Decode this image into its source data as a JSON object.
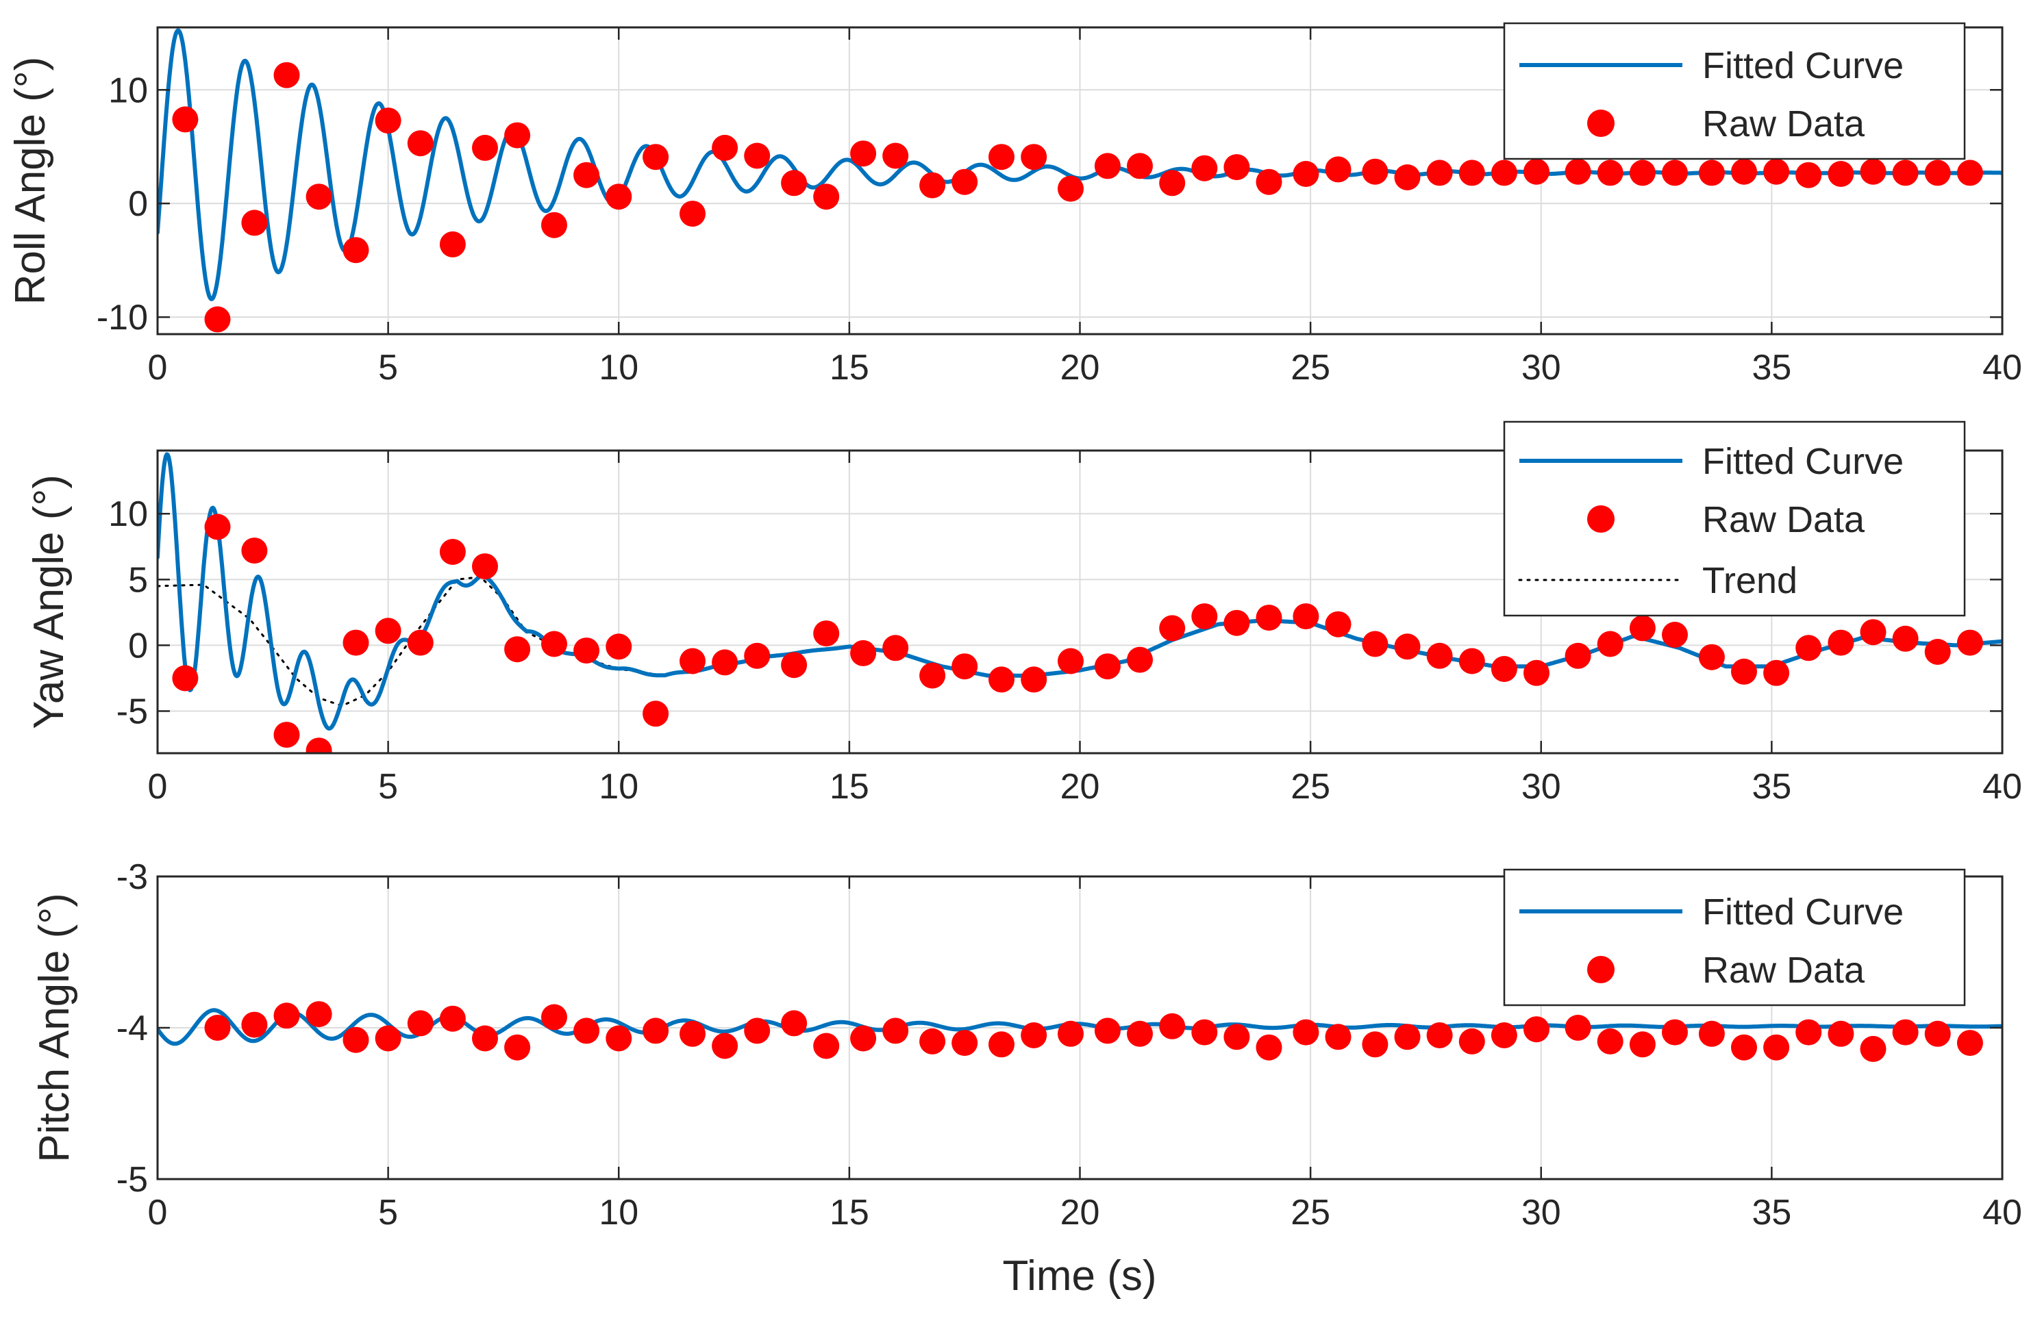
{
  "chart_data": [
    {
      "type": "line",
      "id": "roll",
      "ylabel": "Roll Angle (°)",
      "xlabel": "",
      "xlim": [
        0,
        40
      ],
      "ylim": [
        -11.5,
        15.5
      ],
      "xticks": [
        0,
        5,
        10,
        15,
        20,
        25,
        30,
        35,
        40
      ],
      "xtick_labels": [
        "0",
        "5",
        "10",
        "15",
        "20",
        "25",
        "30",
        "35",
        "40"
      ],
      "yticks": [
        -10,
        0,
        10
      ],
      "ytick_labels": [
        "-10",
        "0",
        "10"
      ],
      "grid": true,
      "legend": {
        "position": "top-right",
        "entries": [
          "Fitted Curve",
          "Raw Data"
        ]
      },
      "series": [
        {
          "name": "Fitted Curve",
          "kind": "line",
          "color": "#0072BD",
          "model": {
            "offset": 2.7,
            "amplitude": 13.5,
            "decay": 0.165,
            "period": 1.45,
            "phase": -0.4
          }
        },
        {
          "name": "Raw Data",
          "kind": "scatter",
          "color": "#FF0000",
          "x": [
            0.6,
            1.3,
            2.1,
            2.8,
            3.5,
            4.3,
            5,
            5.7,
            6.4,
            7.1,
            7.8,
            8.6,
            9.3,
            10,
            10.8,
            11.6,
            12.3,
            13,
            13.8,
            14.5,
            15.3,
            16,
            16.8,
            17.5,
            18.3,
            19,
            19.8,
            20.6,
            21.3,
            22,
            22.7,
            23.4,
            24.1,
            24.9,
            25.6,
            26.4,
            27.1,
            27.8,
            28.5,
            29.2,
            29.9,
            30.8,
            31.5,
            32.2,
            32.9,
            33.7,
            34.4,
            35.1,
            35.8,
            36.5,
            37.2,
            37.9,
            38.6,
            39.3
          ],
          "y": [
            7.4,
            -10.2,
            -1.7,
            11.3,
            0.6,
            -4.1,
            7.3,
            5.3,
            -3.6,
            4.9,
            6,
            -1.9,
            2.5,
            0.6,
            4.1,
            -0.9,
            4.9,
            4.2,
            1.8,
            0.6,
            4.4,
            4.2,
            1.6,
            1.9,
            4.1,
            4.1,
            1.3,
            3.3,
            3.3,
            1.8,
            3.1,
            3.2,
            1.9,
            2.6,
            3,
            2.8,
            2.3,
            2.7,
            2.7,
            2.7,
            2.8,
            2.8,
            2.7,
            2.7,
            2.7,
            2.7,
            2.8,
            2.8,
            2.5,
            2.6,
            2.8,
            2.7,
            2.7,
            2.7
          ]
        }
      ]
    },
    {
      "type": "line",
      "id": "yaw",
      "ylabel": "Yaw Angle (°)",
      "xlabel": "",
      "xlim": [
        0,
        40
      ],
      "ylim": [
        -8.2,
        14.8
      ],
      "xticks": [
        0,
        5,
        10,
        15,
        20,
        25,
        30,
        35,
        40
      ],
      "xtick_labels": [
        "0",
        "5",
        "10",
        "15",
        "20",
        "25",
        "30",
        "35",
        "40"
      ],
      "yticks": [
        -5,
        0,
        5,
        10
      ],
      "ytick_labels": [
        "-5",
        "0",
        "5",
        "10"
      ],
      "grid": true,
      "legend": {
        "position": "top-right",
        "entries": [
          "Fitted Curve",
          "Raw Data",
          "Trend"
        ]
      },
      "series": [
        {
          "name": "Trend",
          "kind": "line",
          "style": "dotted",
          "color": "#000000",
          "x": [
            0,
            1,
            2,
            2.5,
            3,
            3.5,
            4,
            4.5,
            5,
            5.5,
            6,
            6.5,
            7,
            7.5,
            8,
            9,
            10,
            11,
            12,
            13,
            14,
            15,
            16,
            17,
            18,
            19,
            20,
            21,
            22,
            23,
            24,
            25,
            26,
            27,
            28,
            29,
            30,
            31,
            32,
            33,
            34,
            35,
            36,
            37,
            38,
            39,
            40
          ],
          "y": [
            4.5,
            4.6,
            2,
            -0.2,
            -2.5,
            -4,
            -4.6,
            -3.8,
            -2,
            0.5,
            2.8,
            5,
            5.2,
            3.5,
            1,
            -0.7,
            -1.8,
            -2.3,
            -1.7,
            -1,
            -0.5,
            -0.1,
            -0.5,
            -1.6,
            -2.3,
            -2.3,
            -1.9,
            -1.2,
            0.4,
            1.6,
            1.9,
            1.7,
            0.5,
            -0.3,
            -1,
            -1.6,
            -1.6,
            -0.6,
            0.7,
            -0.2,
            -1.6,
            -1.6,
            -0.4,
            0.6,
            0.2,
            0,
            0.3
          ]
        },
        {
          "name": "Fitted Curve",
          "kind": "line",
          "color": "#0072BD",
          "model": {
            "amplitude": 11,
            "decay": 0.45,
            "period": 1.0,
            "phase": 0.2
          }
        },
        {
          "name": "Raw Data",
          "kind": "scatter",
          "color": "#FF0000",
          "x": [
            0.6,
            1.3,
            2.1,
            2.8,
            3.5,
            4.3,
            5,
            5.7,
            6.4,
            7.1,
            7.8,
            8.6,
            9.3,
            10,
            10.8,
            11.6,
            12.3,
            13,
            13.8,
            14.5,
            15.3,
            16,
            16.8,
            17.5,
            18.3,
            19,
            19.8,
            20.6,
            21.3,
            22,
            22.7,
            23.4,
            24.1,
            24.9,
            25.6,
            26.4,
            27.1,
            27.8,
            28.5,
            29.2,
            29.9,
            30.8,
            31.5,
            32.2,
            32.9,
            33.7,
            34.4,
            35.1,
            35.8,
            36.5,
            37.2,
            37.9,
            38.6,
            39.3
          ],
          "y": [
            -2.5,
            9,
            7.2,
            -6.8,
            -8,
            0.2,
            1.1,
            0.2,
            7.1,
            6,
            -0.3,
            0.1,
            -0.4,
            -0.1,
            -5.2,
            -1.2,
            -1.3,
            -0.8,
            -1.5,
            0.9,
            -0.6,
            -0.2,
            -2.3,
            -1.6,
            -2.6,
            -2.6,
            -1.2,
            -1.6,
            -1.1,
            1.3,
            2.2,
            1.7,
            2.1,
            2.2,
            1.6,
            0.1,
            -0.1,
            -0.8,
            -1.2,
            -1.8,
            -2.1,
            -0.8,
            0.1,
            1.3,
            0.8,
            -0.9,
            -2,
            -2.1,
            -0.2,
            0.2,
            1,
            0.5,
            -0.5,
            0.2
          ]
        }
      ]
    },
    {
      "type": "line",
      "id": "pitch",
      "ylabel": "Pitch Angle (°)",
      "xlabel": "Time (s)",
      "xlim": [
        0,
        40
      ],
      "ylim": [
        -5,
        -3
      ],
      "xticks": [
        0,
        5,
        10,
        15,
        20,
        25,
        30,
        35,
        40
      ],
      "xtick_labels": [
        "0",
        "5",
        "10",
        "15",
        "20",
        "25",
        "30",
        "35",
        "40"
      ],
      "yticks": [
        -5,
        -4,
        -3
      ],
      "ytick_labels": [
        "-5",
        "-4",
        "-3"
      ],
      "grid": true,
      "legend": {
        "position": "top-right",
        "entries": [
          "Fitted Curve",
          "Raw Data"
        ]
      },
      "series": [
        {
          "name": "Fitted Curve",
          "kind": "line",
          "color": "#0072BD",
          "model": {
            "offset": -3.99,
            "amplitude": 0.12,
            "decay": 0.1,
            "period": 1.7,
            "phase": 3.3
          }
        },
        {
          "name": "Raw Data",
          "kind": "scatter",
          "color": "#FF0000",
          "x": [
            1.3,
            2.1,
            2.8,
            3.5,
            4.3,
            5,
            5.7,
            6.4,
            7.1,
            7.8,
            8.6,
            9.3,
            10,
            10.8,
            11.6,
            12.3,
            13,
            13.8,
            14.5,
            15.3,
            16,
            16.8,
            17.5,
            18.3,
            19,
            19.8,
            20.6,
            21.3,
            22,
            22.7,
            23.4,
            24.1,
            24.9,
            25.6,
            26.4,
            27.1,
            27.8,
            28.5,
            29.2,
            29.9,
            30.8,
            31.5,
            32.2,
            32.9,
            33.7,
            34.4,
            35.1,
            35.8,
            36.5,
            37.2,
            37.9,
            38.6,
            39.3
          ],
          "y": [
            -4,
            -3.98,
            -3.92,
            -3.91,
            -4.08,
            -4.07,
            -3.97,
            -3.94,
            -4.07,
            -4.13,
            -3.93,
            -4.02,
            -4.07,
            -4.02,
            -4.04,
            -4.12,
            -4.02,
            -3.97,
            -4.12,
            -4.07,
            -4.02,
            -4.09,
            -4.1,
            -4.11,
            -4.05,
            -4.04,
            -4.02,
            -4.04,
            -3.99,
            -4.03,
            -4.06,
            -4.13,
            -4.03,
            -4.06,
            -4.11,
            -4.06,
            -4.05,
            -4.09,
            -4.05,
            -4.01,
            -4,
            -4.09,
            -4.11,
            -4.03,
            -4.04,
            -4.13,
            -4.13,
            -4.03,
            -4.04,
            -4.14,
            -4.03,
            -4.04,
            -4.1
          ]
        }
      ]
    }
  ]
}
